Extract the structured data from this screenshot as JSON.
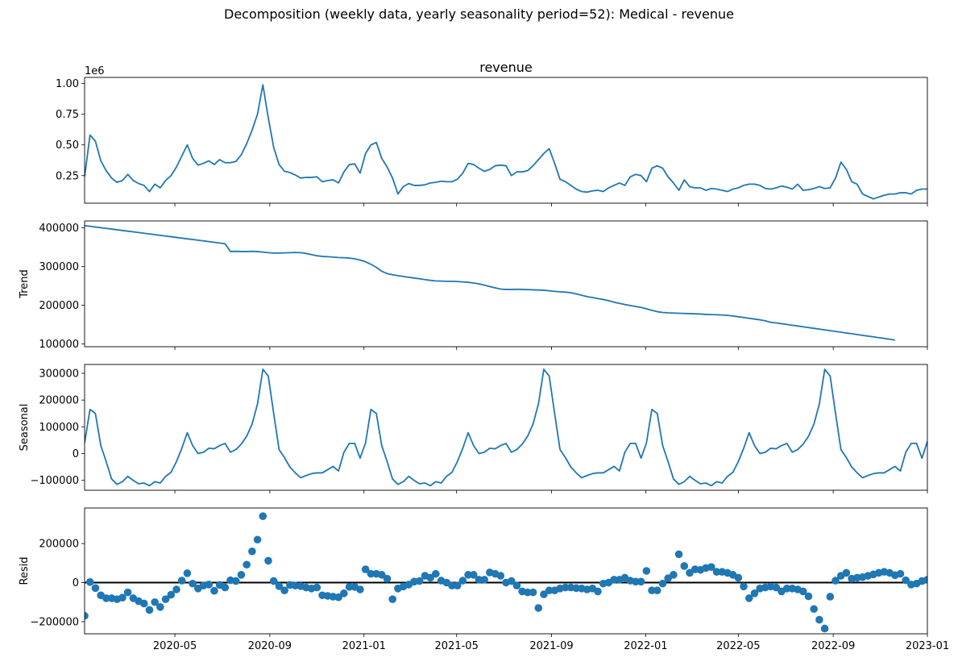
{
  "suptitle": "Decomposition (weekly data, yearly seasonality period=52): Medical - revenue",
  "colors": {
    "line": "#1f77b4",
    "marker": "#1f77b4",
    "zero_line": "#000000"
  },
  "chart_data": [
    {
      "type": "line",
      "panel": "observed",
      "title": "revenue",
      "ylabel": "",
      "offset_text": "1e6",
      "x_start": "2020-01-05",
      "x_step_days": 7,
      "x_range": [
        "2020-01-05",
        "2023-01-01"
      ],
      "x_tick_labels": [
        "2020-05",
        "2020-09",
        "2021-01",
        "2021-05",
        "2021-09",
        "2022-01",
        "2022-05",
        "2022-09",
        "2023-01"
      ],
      "x_tick_dates": [
        "2020-05-01",
        "2020-09-01",
        "2021-01-01",
        "2021-05-01",
        "2021-09-01",
        "2022-01-01",
        "2022-05-01",
        "2022-09-01",
        "2023-01-01"
      ],
      "ylim": [
        0.025,
        1.05
      ],
      "y_ticks": [
        0.25,
        0.5,
        0.75,
        1.0
      ],
      "y_tick_labels": [
        "0.25",
        "0.50",
        "0.75",
        "1.00"
      ],
      "series": [
        {
          "values": [
            0.24,
            0.58,
            0.53,
            0.37,
            0.29,
            0.23,
            0.195,
            0.21,
            0.26,
            0.21,
            0.185,
            0.17,
            0.12,
            0.18,
            0.15,
            0.21,
            0.25,
            0.32,
            0.41,
            0.5,
            0.39,
            0.335,
            0.35,
            0.37,
            0.34,
            0.38,
            0.355,
            0.355,
            0.365,
            0.42,
            0.51,
            0.62,
            0.75,
            0.99,
            0.72,
            0.48,
            0.34,
            0.285,
            0.275,
            0.255,
            0.23,
            0.235,
            0.235,
            0.24,
            0.2,
            0.21,
            0.215,
            0.19,
            0.28,
            0.34,
            0.345,
            0.27,
            0.43,
            0.5,
            0.52,
            0.39,
            0.32,
            0.23,
            0.1,
            0.16,
            0.185,
            0.17,
            0.17,
            0.175,
            0.19,
            0.195,
            0.205,
            0.2,
            0.2,
            0.22,
            0.27,
            0.35,
            0.34,
            0.31,
            0.285,
            0.3,
            0.33,
            0.335,
            0.33,
            0.25,
            0.28,
            0.28,
            0.29,
            0.33,
            0.38,
            0.43,
            0.47,
            0.35,
            0.22,
            0.2,
            0.17,
            0.14,
            0.12,
            0.115,
            0.125,
            0.13,
            0.12,
            0.15,
            0.17,
            0.19,
            0.17,
            0.24,
            0.26,
            0.25,
            0.2,
            0.31,
            0.33,
            0.31,
            0.24,
            0.19,
            0.13,
            0.215,
            0.16,
            0.15,
            0.15,
            0.13,
            0.145,
            0.14,
            0.13,
            0.12,
            0.14,
            0.15,
            0.17,
            0.18,
            0.18,
            0.17,
            0.145,
            0.14,
            0.15,
            0.165,
            0.155,
            0.14,
            0.18,
            0.13,
            0.135,
            0.145,
            0.16,
            0.145,
            0.15,
            0.23,
            0.36,
            0.3,
            0.2,
            0.18,
            0.1,
            0.08,
            0.06,
            0.075,
            0.09,
            0.1,
            0.1,
            0.11,
            0.11,
            0.1,
            0.13,
            0.14,
            0.14,
            0.1,
            0.17
          ]
        }
      ]
    },
    {
      "type": "line",
      "panel": "trend",
      "ylabel": "Trend",
      "x_start": "2020-01-05",
      "x_step_days": 7,
      "x_range": [
        "2020-01-05",
        "2023-01-01"
      ],
      "ylim": [
        93000,
        418000
      ],
      "y_ticks": [
        100000,
        200000,
        300000,
        400000
      ],
      "y_tick_labels": [
        "100000",
        "200000",
        "300000",
        "400000"
      ],
      "series": [
        {
          "values": [
            406000,
            404200,
            402400,
            400600,
            398800,
            397000,
            395200,
            393400,
            391600,
            389800,
            388000,
            386200,
            384400,
            382600,
            380800,
            379000,
            377200,
            375400,
            373600,
            371800,
            370000,
            368200,
            366400,
            364600,
            362800,
            361000,
            359200,
            339000,
            339500,
            339000,
            339000,
            339500,
            339000,
            337500,
            336000,
            335000,
            335000,
            335500,
            336000,
            336500,
            336000,
            334000,
            331000,
            328000,
            326500,
            325500,
            324500,
            323500,
            323000,
            322000,
            320000,
            317000,
            312500,
            306000,
            298000,
            288000,
            282000,
            279000,
            276500,
            274500,
            272500,
            270500,
            268500,
            266500,
            264500,
            263000,
            262500,
            262000,
            262000,
            261500,
            260500,
            259500,
            257500,
            255500,
            252000,
            248500,
            245000,
            242000,
            241000,
            241000,
            241500,
            241000,
            240500,
            240000,
            239500,
            239000,
            237500,
            236000,
            235000,
            234000,
            232500,
            229500,
            226000,
            222500,
            220000,
            217500,
            215000,
            212000,
            208000,
            205000,
            202000,
            199500,
            197000,
            194500,
            191000,
            187000,
            183500,
            181500,
            180500,
            180000,
            179500,
            179000,
            178500,
            178000,
            177500,
            176500,
            176000,
            175500,
            175000,
            174000,
            172500,
            170500,
            168500,
            166500,
            164500,
            162500,
            160000,
            156000,
            154500,
            152500,
            150500,
            148500,
            146500,
            144500,
            142500,
            140500,
            138500,
            136500,
            134500,
            132500,
            130500,
            128500,
            126500,
            124500,
            122500,
            120500,
            118500,
            116500,
            114500,
            112500,
            110000
          ]
        }
      ]
    },
    {
      "type": "line",
      "panel": "seasonal",
      "ylabel": "Seasonal",
      "x_start": "2020-01-05",
      "x_step_days": 7,
      "x_range": [
        "2020-01-05",
        "2023-01-01"
      ],
      "ylim": [
        -137000,
        333000
      ],
      "y_ticks": [
        -100000,
        0,
        100000,
        200000,
        300000
      ],
      "y_tick_labels": [
        "−100000",
        "0",
        "100000",
        "200000",
        "300000"
      ],
      "series": [
        {
          "values": [
            40000,
            165000,
            150000,
            30000,
            -30000,
            -95000,
            -115000,
            -105000,
            -85000,
            -100000,
            -113000,
            -110000,
            -120000,
            -105000,
            -110000,
            -85000,
            -70000,
            -30000,
            20000,
            78000,
            30000,
            0,
            5000,
            20000,
            18000,
            30000,
            38000,
            5000,
            15000,
            35000,
            65000,
            110000,
            185000,
            315000,
            290000,
            150000,
            15000,
            -15000,
            -50000,
            -72000,
            -90000,
            -82000,
            -75000,
            -72000,
            -72000,
            -60000,
            -48000,
            -65000,
            5000,
            38000,
            38000,
            -17000,
            40000,
            165000,
            150000,
            30000,
            -30000,
            -95000,
            -115000,
            -105000,
            -85000,
            -100000,
            -113000,
            -110000,
            -120000,
            -105000,
            -110000,
            -85000,
            -70000,
            -30000,
            20000,
            78000,
            30000,
            0,
            5000,
            20000,
            18000,
            30000,
            38000,
            5000,
            15000,
            35000,
            65000,
            110000,
            185000,
            315000,
            290000,
            150000,
            15000,
            -15000,
            -50000,
            -72000,
            -90000,
            -82000,
            -75000,
            -72000,
            -72000,
            -60000,
            -48000,
            -65000,
            5000,
            38000,
            38000,
            -17000,
            40000,
            165000,
            150000,
            30000,
            -30000,
            -95000,
            -115000,
            -105000,
            -85000,
            -100000,
            -113000,
            -110000,
            -120000,
            -105000,
            -110000,
            -85000,
            -70000,
            -30000,
            20000,
            78000,
            30000,
            0,
            5000,
            20000,
            18000,
            30000,
            38000,
            5000,
            15000,
            35000,
            65000,
            110000,
            185000,
            315000,
            290000,
            150000,
            15000,
            -15000,
            -50000,
            -72000,
            -90000,
            -82000,
            -75000,
            -72000,
            -72000,
            -60000,
            -48000,
            -65000,
            5000,
            38000,
            38000,
            -17000,
            45000
          ]
        }
      ]
    },
    {
      "type": "scatter",
      "panel": "resid",
      "ylabel": "Resid",
      "x_start": "2020-01-05",
      "x_step_days": 7,
      "x_range": [
        "2020-01-05",
        "2023-01-01"
      ],
      "ylim": [
        -262000,
        382000
      ],
      "y_ticks": [
        -200000,
        0,
        200000
      ],
      "y_tick_labels": [
        "−200000",
        "0",
        "200000"
      ],
      "zero_line": true,
      "series": [
        {
          "values": [
            -170000,
            3000,
            -28000,
            -65000,
            -80000,
            -80000,
            -85000,
            -77000,
            -50000,
            -80000,
            -95000,
            -107000,
            -140000,
            -100000,
            -125000,
            -85000,
            -62000,
            -35000,
            10000,
            48000,
            -5000,
            -30000,
            -15000,
            -10000,
            -42000,
            -12000,
            -25000,
            12000,
            8000,
            40000,
            92000,
            160000,
            220000,
            340000,
            112000,
            8000,
            -18000,
            -40000,
            -12000,
            -15000,
            -18000,
            -25000,
            -30000,
            -25000,
            -65000,
            -68000,
            -72000,
            -75000,
            -55000,
            -22000,
            -22000,
            -35000,
            68000,
            45000,
            45000,
            40000,
            20000,
            -85000,
            -30000,
            -20000,
            -10000,
            5000,
            8000,
            35000,
            25000,
            45000,
            10000,
            0,
            -15000,
            -15000,
            10000,
            40000,
            40000,
            15000,
            15000,
            52000,
            45000,
            35000,
            0,
            8000,
            -15000,
            -45000,
            -50000,
            -50000,
            -130000,
            -60000,
            -40000,
            -40000,
            -30000,
            -25000,
            -25000,
            -28000,
            -30000,
            -35000,
            -30000,
            -45000,
            -5000,
            0,
            15000,
            15000,
            25000,
            10000,
            5000,
            5000,
            60000,
            -40000,
            -40000,
            -5000,
            22000,
            40000,
            145000,
            85000,
            50000,
            68000,
            65000,
            75000,
            80000,
            55000,
            55000,
            50000,
            40000,
            25000,
            -20000,
            -80000,
            -55000,
            -30000,
            -25000,
            -20000,
            -25000,
            -45000,
            -30000,
            -30000,
            -35000,
            -45000,
            -70000,
            -135000,
            -190000,
            -235000,
            -72000,
            10000,
            35000,
            50000,
            20000,
            25000,
            28000,
            35000,
            42000,
            50000,
            55000,
            50000,
            38000,
            45000,
            12000,
            -10000,
            -5000,
            8000,
            15000
          ]
        }
      ]
    }
  ]
}
